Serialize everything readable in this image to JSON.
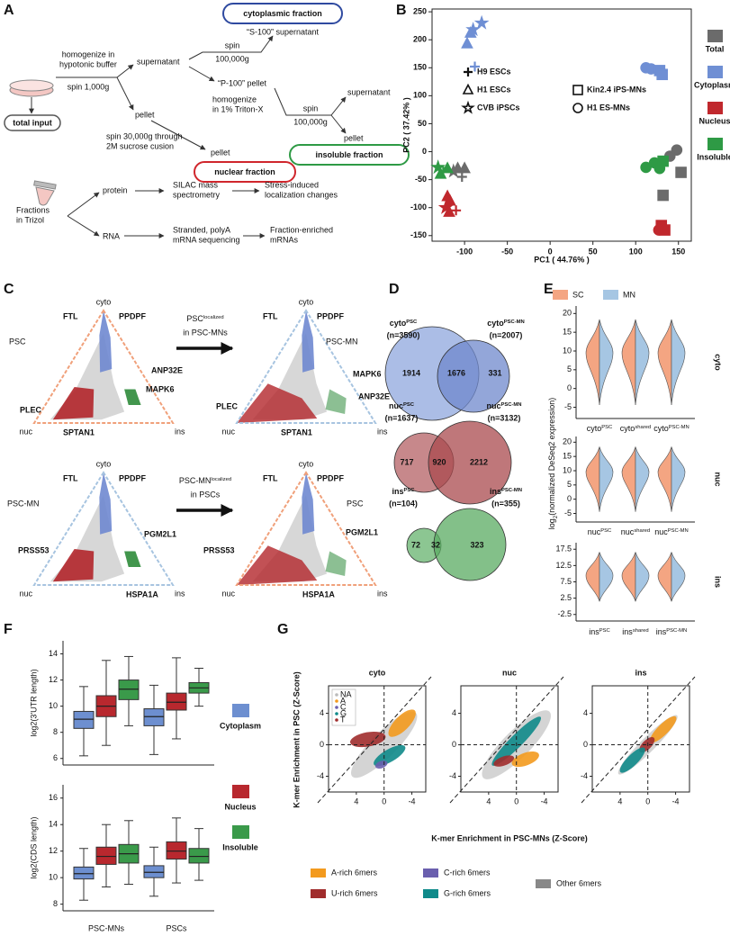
{
  "panel_a": {
    "label": "A",
    "total_input": "total input",
    "homogenize": [
      "homogenize in",
      "hypotonic buffer"
    ],
    "spin_1000": "spin 1,000g",
    "supernatant_1": "supernatant",
    "spin_100000_1": [
      "spin",
      "100,000g"
    ],
    "cytoplasmic_fraction": "cytoplasmic fraction",
    "s100": "“S-100” supernatant",
    "p100": "“P-100” pellet",
    "homogenize_triton": [
      "homogenize",
      "in 1% Triton-X"
    ],
    "spin_100000_2": [
      "spin",
      "100,000g"
    ],
    "supernatant_2": "supernatant",
    "pellet_1": "pellet",
    "pellet_2": "pellet",
    "pellet_3": "pellet",
    "spin_sucrose": [
      "spin 30,000g through",
      "2M sucrose cusion"
    ],
    "nuclear_fraction": "nuclear fraction",
    "insoluble_fraction": "insoluble fraction",
    "fractions": [
      "Fractions",
      "in Trizol"
    ],
    "protein": "protein",
    "silac": [
      "SILAC mass",
      "spectrometry"
    ],
    "stress": [
      "Stress-induced",
      "localization changes"
    ],
    "rna": "RNA",
    "sequencing": [
      "Stranded, polyA",
      "mRNA sequencing"
    ],
    "enriched": [
      "Fraction-enriched",
      "mRNAs"
    ]
  },
  "panel_b": {
    "label": "B",
    "type": "scatter",
    "xlabel": "PC1 ( 44.76% )",
    "ylabel": "PC2 ( 37.42% )",
    "xlim": [
      -138,
      165
    ],
    "ylim": [
      -160,
      255
    ],
    "xticks": [
      -100,
      -50,
      0,
      50,
      100,
      150
    ],
    "yticks": [
      -150,
      -100,
      -50,
      0,
      50,
      100,
      150,
      200,
      250
    ],
    "shape_legend": [
      {
        "label": "H9 ESCs",
        "shape": "plus"
      },
      {
        "label": "H1 ESCs",
        "shape": "triangle"
      },
      {
        "label": "CVB iPSCs",
        "shape": "star"
      },
      {
        "label": "Kin2.4 iPS-MNs",
        "shape": "square"
      },
      {
        "label": "H1 ES-MNs",
        "shape": "circle"
      }
    ],
    "series": [
      {
        "name": "Total",
        "color": "#6b6b6b",
        "x": [
          -103,
          -108,
          -113,
          -100,
          148,
          140,
          153,
          132
        ],
        "y": [
          -45,
          -30,
          -35,
          -30,
          3,
          -8,
          -37,
          -78
        ],
        "shape": [
          "plus",
          "triangle",
          "star",
          "triangle",
          "circle",
          "circle",
          "square",
          "square"
        ]
      },
      {
        "name": "Cytoplasm",
        "color": "#6f8fd4",
        "x": [
          -80,
          -90,
          -93,
          -97,
          -88,
          112,
          118,
          128,
          131
        ],
        "y": [
          230,
          218,
          212,
          193,
          152,
          150,
          148,
          145,
          138
        ],
        "shape": [
          "star",
          "star",
          "triangle",
          "triangle",
          "plus",
          "circle",
          "circle",
          "square",
          "square"
        ]
      },
      {
        "name": "Nucleus",
        "color": "#c0282d",
        "x": [
          -120,
          -117,
          -122,
          -110,
          -118,
          130,
          134,
          127
        ],
        "y": [
          -80,
          -88,
          -100,
          -105,
          -108,
          -132,
          -140,
          -140
        ],
        "shape": [
          "triangle",
          "triangle",
          "star",
          "plus",
          "triangle",
          "square",
          "square",
          "circle"
        ]
      },
      {
        "name": "Insoluble",
        "color": "#2e9a45",
        "x": [
          -131,
          -128,
          -125,
          -120,
          112,
          122,
          132,
          128
        ],
        "y": [
          -28,
          -40,
          -35,
          -30,
          -28,
          -20,
          -17,
          -30
        ],
        "shape": [
          "star",
          "triangle",
          "plus",
          "triangle",
          "circle",
          "circle",
          "square",
          "circle"
        ]
      }
    ]
  },
  "panel_c": {
    "label": "C",
    "vertices": {
      "top": "cyto",
      "left": "nuc",
      "right": "ins"
    },
    "groups": {
      "psc": "PSC",
      "mn": "PSC-MN"
    },
    "arrows": [
      {
        "base": "PSC",
        "sup": "localized",
        "line2": "in PSC-MNs"
      },
      {
        "base": "PSC-MN",
        "sup": "localized",
        "line2": "in PSCs"
      }
    ],
    "genes": [
      [
        "FTL",
        "PPDPF",
        "ANP32E",
        "MAPK6",
        "PLEC",
        "SPTAN1"
      ],
      [
        "FTL",
        "PPDPF",
        "MAPK6",
        "ANP32E",
        "PLEC",
        "SPTAN1"
      ],
      [
        "FTL",
        "PPDPF",
        "PGM2L1",
        "PRSS53",
        "HSPA1A"
      ],
      [
        "FTL",
        "PPDPF",
        "PGM2L1",
        "PRSS53",
        "HSPA1A"
      ]
    ]
  },
  "panel_d": {
    "label": "D",
    "venns": [
      {
        "left": {
          "base": "cyto",
          "sup": "PSC",
          "n": "(n=3590)"
        },
        "right": {
          "base": "cyto",
          "sup": "PSC-MN",
          "n": "(n=2007)"
        },
        "counts": [
          1914,
          1676,
          331
        ]
      },
      {
        "left": {
          "base": "nuc",
          "sup": "PSC",
          "n": "(n=1637)"
        },
        "right": {
          "base": "nuc",
          "sup": "PSC-MN",
          "n": "(n=3132)"
        },
        "counts": [
          717,
          920,
          2212
        ]
      },
      {
        "left": {
          "base": "ins",
          "sup": "PSC",
          "n": "(n=104)"
        },
        "right": {
          "base": "ins",
          "sup": "PSC-MN",
          "n": "(n=355)"
        },
        "counts": [
          72,
          32,
          323
        ]
      }
    ]
  },
  "panel_e": {
    "label": "E",
    "legend": [
      {
        "name": "SC",
        "color": "#f4a582"
      },
      {
        "name": "MN",
        "color": "#a6c6e3"
      }
    ],
    "ylabel": {
      "base": "log",
      "sub": "2",
      "rest": "(normalized DeSeq2 expression)"
    },
    "rows": [
      {
        "name": "cyto",
        "color": "#3d8fd1",
        "ylim": [
          -8,
          22
        ],
        "yticks": [
          20,
          15,
          10,
          5,
          0,
          -5
        ],
        "categories": [
          {
            "base": "cyto",
            "sup": "PSC"
          },
          {
            "base": "cyto",
            "sup": "shared"
          },
          {
            "base": "cyto",
            "sup": "PSC-MN"
          }
        ]
      },
      {
        "name": "nuc",
        "color": "#b22a2a",
        "ylim": [
          -8,
          22
        ],
        "yticks": [
          20,
          15,
          10,
          5,
          0,
          -5
        ],
        "categories": [
          {
            "base": "nuc",
            "sup": "PSC"
          },
          {
            "base": "nuc",
            "sup": "shared"
          },
          {
            "base": "nuc",
            "sup": "PSC-MN"
          }
        ]
      },
      {
        "name": "ins",
        "color": "#2e9a45",
        "ylim": [
          -4.5,
          19.5
        ],
        "yticks": [
          17.5,
          12.5,
          7.5,
          2.5,
          -2.5
        ],
        "categories": [
          {
            "base": "ins",
            "sup": "PSC"
          },
          {
            "base": "ins",
            "sup": "shared"
          },
          {
            "base": "ins",
            "sup": "PSC-MN"
          }
        ]
      }
    ]
  },
  "panel_f": {
    "label": "F",
    "categories": [
      "PSC-MNs",
      "PSCs"
    ],
    "legend": [
      {
        "name": "Cytoplasm",
        "color": "#6d8fd0"
      },
      {
        "name": "Nucleus",
        "color": "#b8282e"
      },
      {
        "name": "Insoluble",
        "color": "#3a9a4a"
      }
    ],
    "plots": [
      {
        "ylabel": "log2(3'UTR length)",
        "ylim": [
          5.5,
          15
        ],
        "yticks": [
          14,
          12,
          10,
          8,
          6
        ],
        "boxes": [
          [
            [
              6.2,
              8.3,
              9,
              9.6,
              11.5
            ],
            [
              7,
              9.2,
              10,
              10.8,
              13.5
            ],
            [
              8.5,
              10.5,
              11.3,
              12,
              13.8
            ]
          ],
          [
            [
              6.3,
              8.5,
              9.2,
              9.8,
              11.6
            ],
            [
              7.5,
              9.7,
              10.3,
              11,
              13.7
            ],
            [
              10,
              11,
              11.4,
              11.8,
              12.9
            ]
          ]
        ]
      },
      {
        "ylabel": "log2(CDS length)",
        "ylim": [
          7.5,
          17
        ],
        "yticks": [
          16,
          14,
          12,
          10,
          8
        ],
        "boxes": [
          [
            [
              8.3,
              9.9,
              10.3,
              10.8,
              12.2
            ],
            [
              9.3,
              11,
              11.6,
              12.3,
              14
            ],
            [
              9.5,
              11.1,
              11.8,
              12.5,
              14.3
            ]
          ],
          [
            [
              8.6,
              10,
              10.4,
              10.9,
              12.3
            ],
            [
              9.6,
              11.4,
              12,
              12.7,
              14.5
            ],
            [
              9.8,
              11.1,
              11.6,
              12.2,
              13.7
            ]
          ]
        ]
      }
    ]
  },
  "panel_g": {
    "label": "G",
    "titles": [
      {
        "text": "cyto",
        "color": "#3d8fd1"
      },
      {
        "text": "nuc",
        "color": "#b22a2a"
      },
      {
        "text": "ins",
        "color": "#2e9a45"
      }
    ],
    "ylabel": "K-mer Enrichment in PSC (Z-Score)",
    "xlabel": "K-mer Enrichment in PSC-MNs (Z-Score)",
    "xlim": [
      8,
      -6
    ],
    "ylim": [
      -6,
      7.5
    ],
    "xticks": [
      4,
      0,
      -4
    ],
    "yticks": [
      4,
      0,
      -4
    ],
    "inset_legend": [
      {
        "name": "NA",
        "color": "#bbbbbb"
      },
      {
        "name": "A",
        "color": "#f39a1e"
      },
      {
        "name": "C",
        "color": "#6a5fae"
      },
      {
        "name": "G",
        "color": "#0f8a8a"
      },
      {
        "name": "T",
        "color": "#a02c2c"
      }
    ],
    "legend": [
      {
        "name": "A-rich 6mers",
        "color": "#f39a1e"
      },
      {
        "name": "C-rich 6mers",
        "color": "#6a5fae"
      },
      {
        "name": "Other 6mers",
        "color": "#888888"
      },
      {
        "name": "U-rich 6mers",
        "color": "#a02c2c"
      },
      {
        "name": "G-rich 6mers",
        "color": "#0f8a8a"
      }
    ]
  }
}
